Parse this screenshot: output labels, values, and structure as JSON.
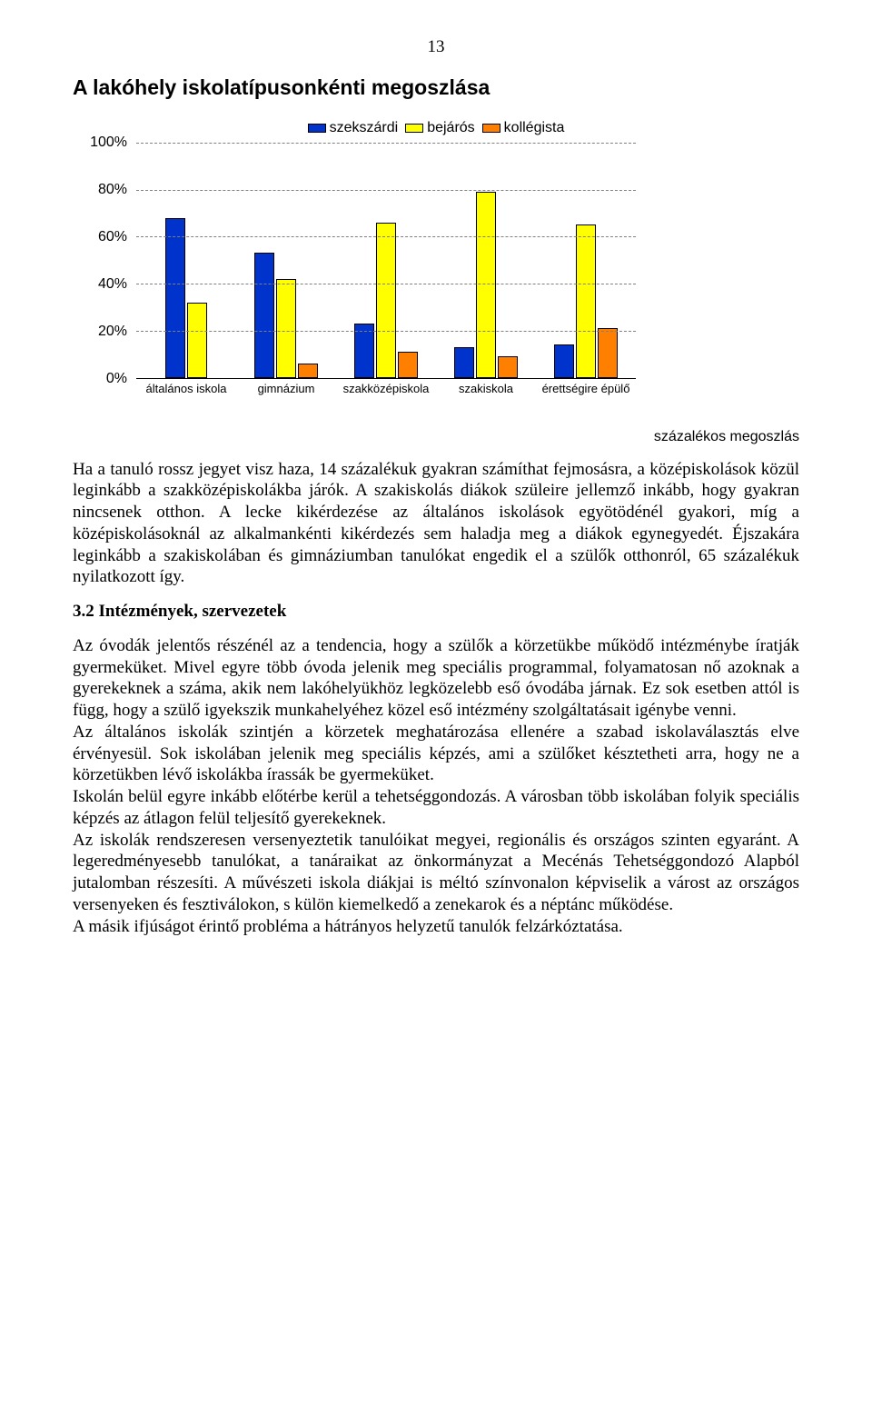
{
  "page_number": "13",
  "chart": {
    "type": "bar",
    "title": "A lakóhely iskolatípusonkénti megoszlása",
    "legend": [
      {
        "label": "szekszárdi",
        "color": "#0033cc"
      },
      {
        "label": "bejárós",
        "color": "#ffff00"
      },
      {
        "label": "kollégista",
        "color": "#ff8000"
      }
    ],
    "y_ticks": [
      {
        "label": "100%",
        "value": 100
      },
      {
        "label": "80%",
        "value": 80
      },
      {
        "label": "60%",
        "value": 60
      },
      {
        "label": "40%",
        "value": 40
      },
      {
        "label": "20%",
        "value": 20
      },
      {
        "label": "0%",
        "value": 0
      }
    ],
    "ylim": [
      0,
      100
    ],
    "grid_color": "#808080",
    "series_colors": [
      "#0033cc",
      "#ffff00",
      "#ff8000"
    ],
    "categories": [
      "általános iskola",
      "gimnázium",
      "szakközépiskola",
      "szakiskola",
      "érettségire épülő"
    ],
    "values": [
      [
        68,
        32,
        0
      ],
      [
        53,
        42,
        6
      ],
      [
        23,
        66,
        11
      ],
      [
        13,
        79,
        9
      ],
      [
        14,
        65,
        21
      ]
    ],
    "bar_border_color": "#000000",
    "background_color": "#ffffff",
    "axis_sublabel": "százalékos megoszlás"
  },
  "paragraph1": "Ha a tanuló rossz jegyet visz haza, 14 százalékuk gyakran számíthat fejmosásra, a középiskolások közül leginkább a szakközépiskolákba járók. A szakiskolás diákok szüleire jellemző inkább, hogy gyakran nincsenek otthon. A lecke kikérdezése az általános iskolások egyötödénél gyakori, míg a középiskolásoknál az alkalmankénti kikérdezés sem haladja meg a diákok egynegyedét. Éjszakára leginkább a szakiskolában és gimnáziumban tanulókat engedik el a szülők otthonról, 65 százalékuk nyilatkozott így.",
  "section_heading": "3.2 Intézmények, szervezetek",
  "paragraph2": "Az óvodák jelentős részénél az a tendencia, hogy a szülők a körzetükbe működő intézménybe íratják gyermeküket. Mivel egyre több óvoda jelenik meg speciális programmal, folyamatosan nő azoknak a gyerekeknek a száma, akik nem lakóhelyükhöz legközelebb eső óvodába járnak. Ez sok esetben attól is függ, hogy a szülő igyekszik munkahelyéhez közel eső intézmény szolgáltatásait igénybe venni.",
  "paragraph3": "Az általános iskolák szintjén a körzetek meghatározása ellenére a szabad iskolaválasztás elve érvényesül. Sok iskolában jelenik meg speciális képzés, ami a szülőket késztetheti arra, hogy ne a körzetükben lévő iskolákba írassák be gyermeküket.",
  "paragraph4": "Iskolán belül egyre inkább előtérbe kerül a tehetséggondozás. A városban több iskolában folyik speciális képzés az átlagon felül teljesítő gyerekeknek.",
  "paragraph5": "Az iskolák rendszeresen versenyeztetik tanulóikat megyei, regionális és országos szinten egyaránt. A legeredményesebb tanulókat, a tanáraikat az önkormányzat a Mecénás Tehetséggondozó Alapból jutalomban részesíti. A művészeti iskola diákjai is méltó színvonalon képviselik a várost az országos versenyeken és fesztiválokon, s külön kiemelkedő a zenekarok és a néptánc működése.",
  "paragraph6": "A másik ifjúságot érintő probléma a hátrányos helyzetű tanulók felzárkóztatása."
}
